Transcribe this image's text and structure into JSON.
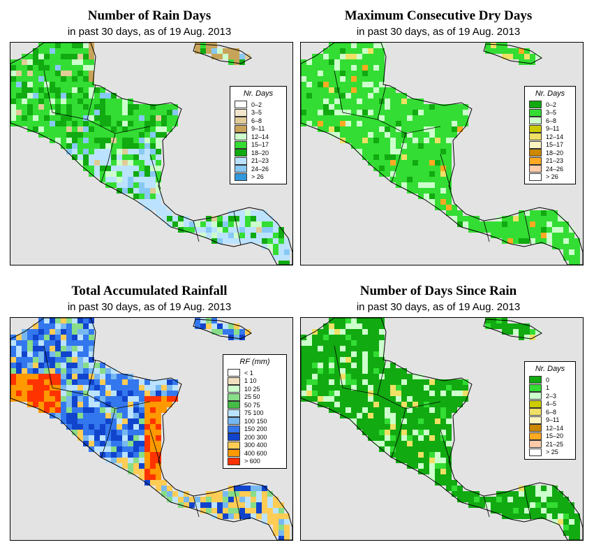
{
  "panels": [
    {
      "title": "Number of Rain Days",
      "subtitle": "in past 30 days, as of  19 Aug. 2013",
      "legend": {
        "title": "Nr. Days",
        "items": [
          {
            "label": "0–2",
            "color": "#ffffff"
          },
          {
            "label": "3–5",
            "color": "#f2e7cc"
          },
          {
            "label": "6–8",
            "color": "#e0cc99"
          },
          {
            "label": "9–11",
            "color": "#c8a45a"
          },
          {
            "label": "12–14",
            "color": "#ccffcc"
          },
          {
            "label": "15–17",
            "color": "#33dd33"
          },
          {
            "label": "18–20",
            "color": "#11aa11"
          },
          {
            "label": "21–23",
            "color": "#bbe3ff"
          },
          {
            "label": "24–26",
            "color": "#88c8f4"
          },
          {
            "label": "> 26",
            "color": "#3399dd"
          }
        ]
      }
    },
    {
      "title": "Maximum Consecutive Dry Days",
      "subtitle": "in past 30 days, as of  19 Aug. 2013",
      "legend": {
        "title": "Nr. Days",
        "items": [
          {
            "label": "0–2",
            "color": "#11aa11"
          },
          {
            "label": "3–5",
            "color": "#33dd33"
          },
          {
            "label": "6–8",
            "color": "#ccffcc"
          },
          {
            "label": "9–11",
            "color": "#cccc00"
          },
          {
            "label": "12–14",
            "color": "#f0e066"
          },
          {
            "label": "15–17",
            "color": "#fff5c0"
          },
          {
            "label": "18–20",
            "color": "#cc8800"
          },
          {
            "label": "21–23",
            "color": "#ffaa22"
          },
          {
            "label": "24–26",
            "color": "#ffccaa"
          },
          {
            "label": "> 26",
            "color": "#ffffff"
          }
        ]
      }
    },
    {
      "title": "Total Accumulated Rainfall",
      "subtitle": "in past 30 days, as of  19 Aug. 2013",
      "legend": {
        "title": "RF (mm)",
        "items": [
          {
            "label": "< 1",
            "color": "#ffffff"
          },
          {
            "label": "1  10",
            "color": "#f2e0c0"
          },
          {
            "label": "10  25",
            "color": "#ccffcc"
          },
          {
            "label": "25  50",
            "color": "#88dd88"
          },
          {
            "label": "50  75",
            "color": "#44bb44"
          },
          {
            "label": "75  100",
            "color": "#bbe3ff"
          },
          {
            "label": "100  150",
            "color": "#77b8f0"
          },
          {
            "label": "150  200",
            "color": "#3377ee"
          },
          {
            "label": "200  300",
            "color": "#1144cc"
          },
          {
            "label": "300  400",
            "color": "#ffcc55"
          },
          {
            "label": "400  600",
            "color": "#ff9900"
          },
          {
            "label": "> 600",
            "color": "#ff3300"
          }
        ]
      }
    },
    {
      "title": "Number of Days Since Rain",
      "subtitle": "in past 30 days, as of  19 Aug. 2013",
      "legend": {
        "title": "Nr. Days",
        "items": [
          {
            "label": "0",
            "color": "#11aa11"
          },
          {
            "label": "1",
            "color": "#33dd33"
          },
          {
            "label": "2–3",
            "color": "#ccffcc"
          },
          {
            "label": "4–5",
            "color": "#cccc00"
          },
          {
            "label": "6–8",
            "color": "#f0e066"
          },
          {
            "label": "9–11",
            "color": "#fff5c0"
          },
          {
            "label": "12–14",
            "color": "#cc8800"
          },
          {
            "label": "15–20",
            "color": "#ffaa22"
          },
          {
            "label": "21–25",
            "color": "#ffccaa"
          },
          {
            "label": "> 25",
            "color": "#ffffff"
          }
        ]
      }
    }
  ]
}
